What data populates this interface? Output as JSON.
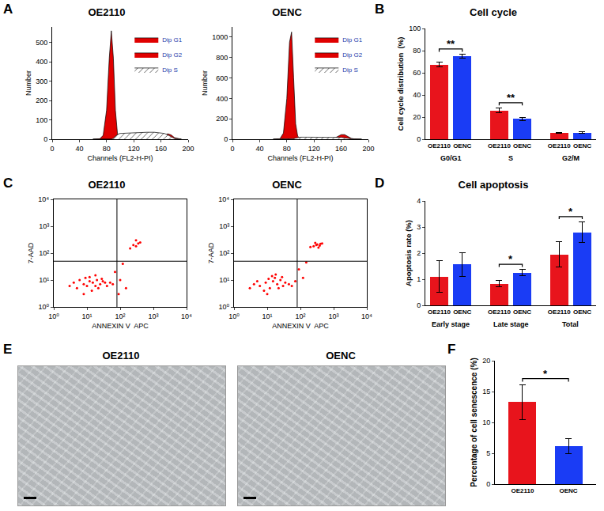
{
  "chart_data": [
    {
      "panel": "A",
      "type": "area",
      "title": "OE2110",
      "x_label": "Channels (FL2-H-PI)",
      "y_label": "Number",
      "x": [
        60,
        70,
        75,
        80,
        84,
        87,
        90,
        93,
        96,
        100,
        110,
        120,
        130,
        140,
        150,
        160,
        165,
        170,
        175,
        180,
        190
      ],
      "series": [
        {
          "name": "Dip G1",
          "color": "#e00000",
          "values": [
            0,
            2,
            20,
            150,
            420,
            560,
            420,
            150,
            30,
            5,
            0,
            0,
            0,
            0,
            0,
            0,
            0,
            0,
            0,
            0,
            0
          ]
        },
        {
          "name": "Dip G2",
          "color": "#e00000",
          "values": [
            0,
            0,
            0,
            0,
            0,
            0,
            0,
            0,
            0,
            0,
            0,
            0,
            0,
            0,
            2,
            10,
            20,
            28,
            22,
            8,
            0
          ]
        },
        {
          "name": "Dip S",
          "color": "#ffffff",
          "values": [
            0,
            0,
            0,
            0,
            0,
            0,
            5,
            15,
            25,
            30,
            32,
            34,
            35,
            36,
            36,
            34,
            30,
            22,
            12,
            4,
            0
          ]
        }
      ],
      "xlim": [
        0,
        200
      ],
      "xticks": [
        0,
        40,
        80,
        120,
        160,
        200
      ],
      "ylim": [
        0,
        580
      ],
      "yticks": [
        0,
        100,
        200,
        300,
        400,
        500
      ],
      "legend": "top right"
    },
    {
      "type": "area",
      "title": "OENC",
      "x_label": "Channels (FL2-H-PI)",
      "y_label": "Number",
      "x": [
        60,
        70,
        75,
        80,
        84,
        87,
        90,
        93,
        96,
        100,
        110,
        120,
        130,
        140,
        150,
        160,
        165,
        170,
        175,
        180,
        190
      ],
      "series": [
        {
          "name": "Dip G1",
          "color": "#e00000",
          "values": [
            0,
            5,
            60,
            400,
            950,
            1050,
            600,
            150,
            30,
            5,
            0,
            0,
            0,
            0,
            0,
            0,
            0,
            0,
            0,
            0,
            0
          ]
        },
        {
          "name": "Dip G2",
          "color": "#e00000",
          "values": [
            0,
            0,
            0,
            0,
            0,
            0,
            0,
            0,
            0,
            0,
            0,
            0,
            0,
            2,
            10,
            45,
            45,
            25,
            8,
            2,
            0
          ]
        },
        {
          "name": "Dip S",
          "color": "#ffffff",
          "values": [
            0,
            0,
            0,
            0,
            0,
            0,
            5,
            12,
            18,
            20,
            20,
            20,
            20,
            20,
            20,
            18,
            14,
            8,
            3,
            0,
            0
          ]
        }
      ],
      "xlim": [
        0,
        200
      ],
      "xticks": [
        0,
        40,
        80,
        120,
        160,
        200
      ],
      "ylim": [
        0,
        1100
      ],
      "yticks": [
        0,
        200,
        400,
        600,
        800,
        1000
      ],
      "legend": "top right"
    },
    {
      "panel": "B",
      "type": "bar",
      "title": "Cell cycle",
      "y_label": "Cell cycle distribution  (%)",
      "categories": [
        "G0/G1",
        "S",
        "G2/M"
      ],
      "series": [
        {
          "name": "OE2110",
          "color": "#e8141c",
          "values": [
            67.5,
            26,
            5.8
          ],
          "errors": [
            2,
            2,
            0.5
          ]
        },
        {
          "name": "OENC",
          "color": "#1a3cf5",
          "values": [
            75,
            18.5,
            6
          ],
          "errors": [
            1.5,
            1.5,
            0.8
          ]
        }
      ],
      "ylim": [
        0,
        100
      ],
      "yticks": [
        0,
        20,
        40,
        60,
        80,
        100
      ],
      "significance": [
        {
          "category": "G0/G1",
          "label": "**"
        },
        {
          "category": "S",
          "label": "**"
        }
      ]
    },
    {
      "panel": "C",
      "type": "scatter",
      "title": "OE2110",
      "x_label": "ANNEXIN V  APC",
      "y_label": "7-AAD",
      "color": "#ff0000",
      "log": true,
      "x": [
        5,
        8,
        10,
        12,
        15,
        18,
        20,
        25,
        30,
        35,
        40,
        6,
        9,
        14,
        22,
        28,
        50,
        60,
        8,
        12,
        18,
        3,
        4,
        100,
        150,
        300,
        250,
        350,
        200,
        400,
        300,
        120,
        90,
        70
      ],
      "y": [
        5,
        7,
        6,
        9,
        8,
        6,
        10,
        7,
        9,
        8,
        6,
        10,
        12,
        4,
        5,
        11,
        8,
        7,
        3,
        13,
        15,
        6,
        8,
        10,
        5,
        180,
        200,
        230,
        150,
        250,
        300,
        40,
        3,
        20
      ],
      "gates": {
        "x": 80,
        "y": 50
      },
      "xlim": [
        1,
        10000
      ],
      "ylim": [
        1,
        10000
      ],
      "xticks": [
        {
          "value": 1,
          "label": "10⁰"
        },
        {
          "value": 10,
          "label": "10¹"
        },
        {
          "value": 100,
          "label": "10²"
        },
        {
          "value": 1000,
          "label": "10³"
        },
        {
          "value": 10000,
          "label": "10⁴"
        }
      ],
      "yticks": [
        {
          "value": 1,
          "label": "10⁰"
        },
        {
          "value": 10,
          "label": "10¹"
        },
        {
          "value": 100,
          "label": "10²"
        },
        {
          "value": 1000,
          "label": "10³"
        },
        {
          "value": 10000,
          "label": "10⁴"
        }
      ]
    },
    {
      "type": "scatter",
      "title": "OENC",
      "x_label": "ANNEXIN V  APC",
      "y_label": "7-AAD",
      "color": "#ff0000",
      "log": true,
      "x": [
        6,
        9,
        12,
        15,
        20,
        25,
        30,
        8,
        11,
        17,
        22,
        35,
        45,
        5,
        14,
        28,
        55,
        70,
        10,
        18,
        4,
        3,
        120,
        200,
        300,
        400,
        350,
        250,
        280,
        320,
        380,
        450,
        150,
        90
      ],
      "y": [
        6,
        8,
        5,
        9,
        7,
        10,
        6,
        4,
        11,
        12,
        5,
        8,
        7,
        9,
        14,
        13,
        6,
        9,
        3,
        16,
        7,
        5,
        12,
        170,
        200,
        220,
        160,
        180,
        240,
        210,
        190,
        230,
        45,
        25
      ],
      "gates": {
        "x": 80,
        "y": 50
      },
      "xlim": [
        1,
        10000
      ],
      "ylim": [
        1,
        10000
      ],
      "xticks": [
        {
          "value": 1,
          "label": "10⁰"
        },
        {
          "value": 10,
          "label": "10¹"
        },
        {
          "value": 100,
          "label": "10²"
        },
        {
          "value": 1000,
          "label": "10³"
        },
        {
          "value": 10000,
          "label": "10⁴"
        }
      ],
      "yticks": [
        {
          "value": 1,
          "label": "10⁰"
        },
        {
          "value": 10,
          "label": "10¹"
        },
        {
          "value": 100,
          "label": "10²"
        },
        {
          "value": 1000,
          "label": "10³"
        },
        {
          "value": 10000,
          "label": "10⁴"
        }
      ]
    },
    {
      "panel": "D",
      "type": "bar",
      "title": "Cell apoptosis",
      "y_label": "Apoptosis rate (%)",
      "categories": [
        "Early stage",
        "Late stage",
        "Total"
      ],
      "series": [
        {
          "name": "OE2110",
          "color": "#e8141c",
          "values": [
            1.1,
            0.82,
            1.95
          ],
          "errors": [
            0.6,
            0.12,
            0.48
          ]
        },
        {
          "name": "OENC",
          "color": "#1a3cf5",
          "values": [
            1.57,
            1.25,
            2.8
          ],
          "errors": [
            0.45,
            0.12,
            0.4
          ]
        }
      ],
      "ylim": [
        0,
        4
      ],
      "yticks": [
        0,
        1,
        2,
        3,
        4
      ],
      "significance": [
        {
          "category": "Late stage",
          "label": "*"
        },
        {
          "category": "Total",
          "label": "*"
        }
      ]
    },
    {
      "panel": "F",
      "type": "bar",
      "y_label": "Percentage of cell senescence (%)",
      "categories": [
        "OE2110",
        "OENC"
      ],
      "values": [
        13.3,
        6.2
      ],
      "errors": [
        2.8,
        1.2
      ],
      "colors": [
        "#e8141c",
        "#1a3cf5"
      ],
      "ylim": [
        0,
        20
      ],
      "yticks": [
        0,
        5,
        10,
        15,
        20
      ],
      "significance": [
        {
          "categories": [
            "OE2110",
            "OENC"
          ],
          "label": "*"
        }
      ]
    }
  ],
  "images": {
    "panel": "E",
    "titles": [
      "OE2110",
      "OENC"
    ]
  }
}
